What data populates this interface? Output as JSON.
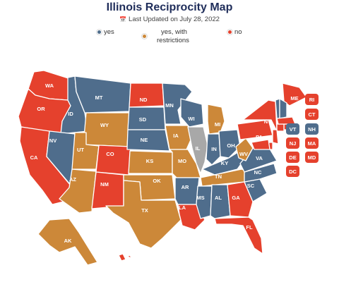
{
  "header": {
    "title": "Illinois Reciprocity Map",
    "updated": "Last Updated on July 28, 2022"
  },
  "colors": {
    "yes": "#4f6d8c",
    "restricted": "#cc8839",
    "no": "#e5412d",
    "home": "#a8a8a8"
  },
  "legend": {
    "yes": "yes",
    "restricted_line1": "yes, with",
    "restricted_line2": "restrictions",
    "no": "no"
  },
  "states": [
    {
      "code": "WA",
      "status": "no"
    },
    {
      "code": "OR",
      "status": "no"
    },
    {
      "code": "CA",
      "status": "no"
    },
    {
      "code": "ID",
      "status": "yes"
    },
    {
      "code": "NV",
      "status": "yes"
    },
    {
      "code": "MT",
      "status": "yes"
    },
    {
      "code": "WY",
      "status": "restricted"
    },
    {
      "code": "UT",
      "status": "restricted"
    },
    {
      "code": "AZ",
      "status": "restricted"
    },
    {
      "code": "CO",
      "status": "no"
    },
    {
      "code": "NM",
      "status": "no"
    },
    {
      "code": "ND",
      "status": "no"
    },
    {
      "code": "SD",
      "status": "yes"
    },
    {
      "code": "NE",
      "status": "yes"
    },
    {
      "code": "KS",
      "status": "restricted"
    },
    {
      "code": "OK",
      "status": "restricted"
    },
    {
      "code": "TX",
      "status": "restricted"
    },
    {
      "code": "MN",
      "status": "yes"
    },
    {
      "code": "IA",
      "status": "restricted"
    },
    {
      "code": "MO",
      "status": "restricted"
    },
    {
      "code": "AR",
      "status": "yes"
    },
    {
      "code": "LA",
      "status": "no"
    },
    {
      "code": "WI",
      "status": "yes"
    },
    {
      "code": "IL",
      "status": "home"
    },
    {
      "code": "MI",
      "status": "restricted"
    },
    {
      "code": "IN",
      "status": "yes"
    },
    {
      "code": "OH",
      "status": "yes"
    },
    {
      "code": "KY",
      "status": "yes"
    },
    {
      "code": "TN",
      "status": "restricted"
    },
    {
      "code": "MS",
      "status": "yes"
    },
    {
      "code": "AL",
      "status": "yes"
    },
    {
      "code": "GA",
      "status": "no"
    },
    {
      "code": "FL",
      "status": "no"
    },
    {
      "code": "SC",
      "status": "yes"
    },
    {
      "code": "NC",
      "status": "yes"
    },
    {
      "code": "VA",
      "status": "yes"
    },
    {
      "code": "WV",
      "status": "restricted"
    },
    {
      "code": "PA",
      "status": "no"
    },
    {
      "code": "NY",
      "status": "no"
    },
    {
      "code": "ME",
      "status": "no"
    },
    {
      "code": "AK",
      "status": "restricted"
    },
    {
      "code": "HI",
      "status": "no"
    }
  ],
  "small_states": [
    {
      "code": "VT",
      "status": "yes"
    },
    {
      "code": "NH",
      "status": "yes"
    },
    {
      "code": "RI",
      "status": "no"
    },
    {
      "code": "CT",
      "status": "no"
    },
    {
      "code": "NJ",
      "status": "no"
    },
    {
      "code": "MA",
      "status": "no"
    },
    {
      "code": "DE",
      "status": "no"
    },
    {
      "code": "MD",
      "status": "no"
    },
    {
      "code": "DC",
      "status": "no"
    }
  ]
}
